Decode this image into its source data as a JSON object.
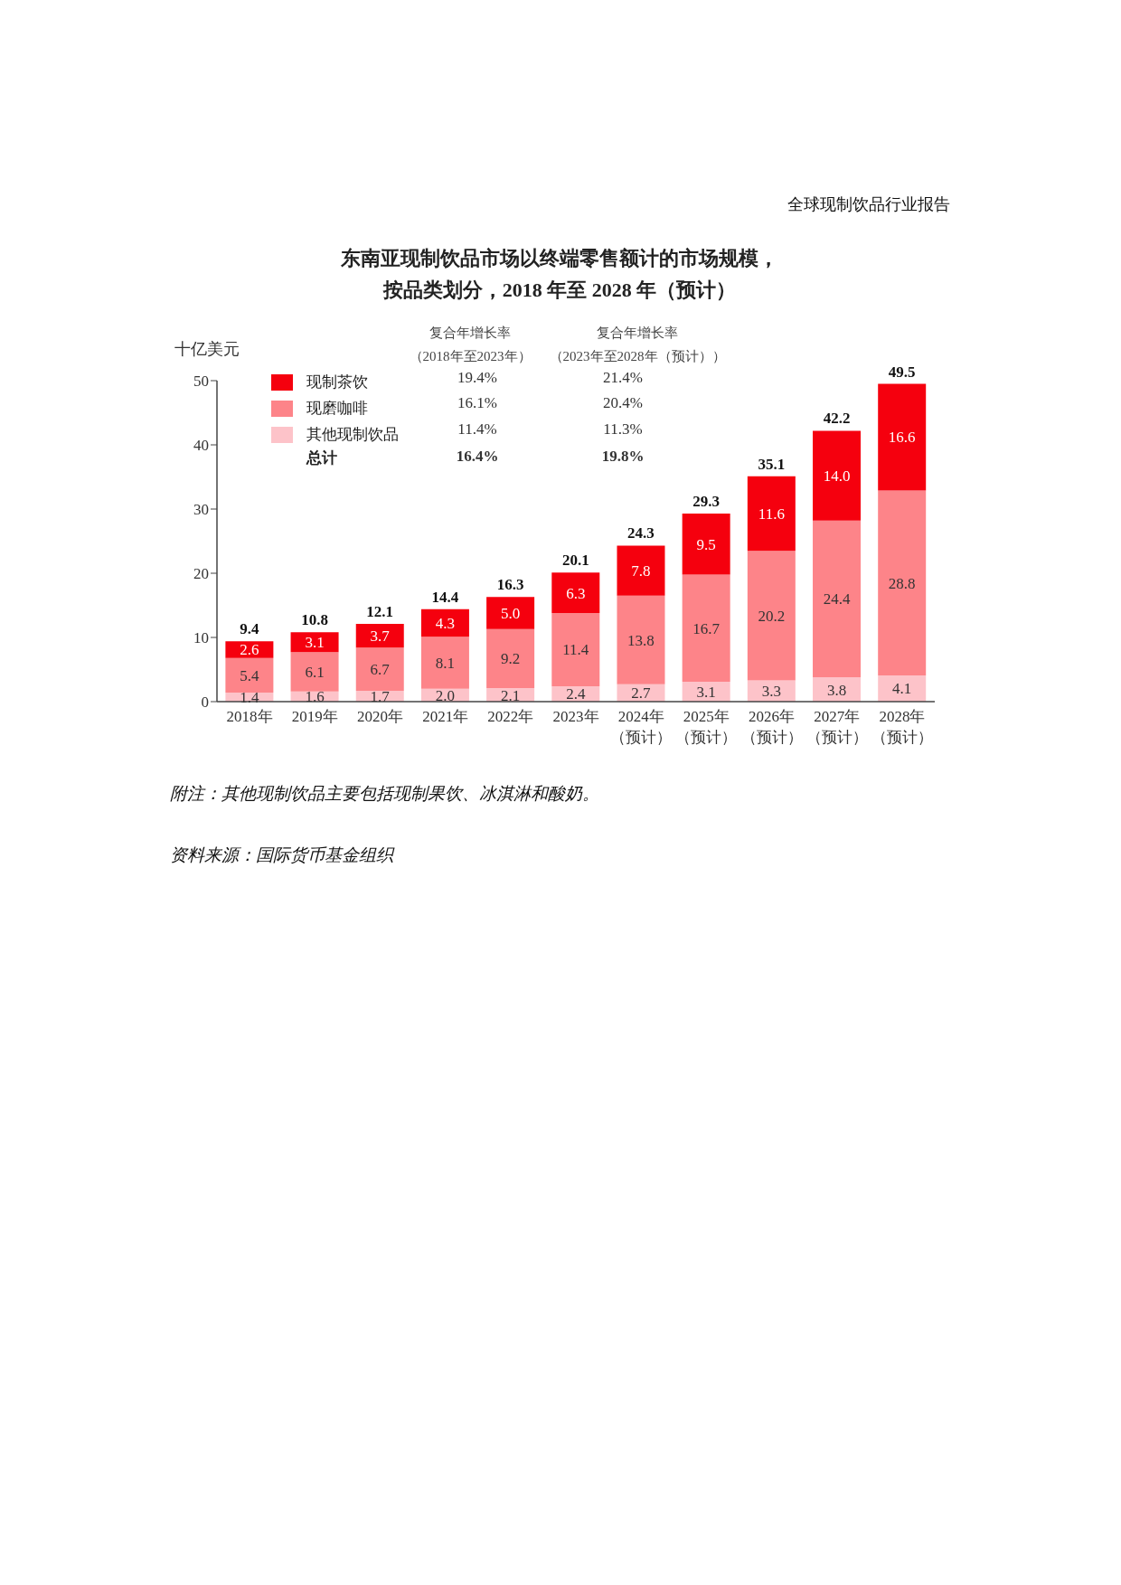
{
  "chart_data": {
    "type": "bar",
    "stacked": true,
    "title": "东南亚现制饮品市场以终端零售额计的市场规模，按品类划分，2018 年至 2028 年（预计）",
    "ylabel": "十亿美元",
    "categories": [
      "2018年",
      "2019年",
      "2020年",
      "2021年",
      "2022年",
      "2023年",
      "2024年（预计）",
      "2025年（预计）",
      "2026年（预计）",
      "2027年（预计）",
      "2028年（预计）"
    ],
    "series": [
      {
        "name": "其他现制饮品",
        "color": "#fdc3c9",
        "values": [
          1.4,
          1.6,
          1.7,
          2.0,
          2.1,
          2.4,
          2.7,
          3.1,
          3.3,
          3.8,
          4.1
        ],
        "value_labels": [
          "1.4",
          "1.6",
          "1.7",
          "2.0",
          "2.1",
          "2.4",
          "2.7",
          "3.1",
          "3.3",
          "3.8",
          "4.1"
        ]
      },
      {
        "name": "现磨咖啡",
        "color": "#fd8489",
        "values": [
          5.4,
          6.1,
          6.7,
          8.1,
          9.2,
          11.4,
          13.8,
          16.7,
          20.2,
          24.4,
          28.8
        ],
        "value_labels": [
          "5.4",
          "6.1",
          "6.7",
          "8.1",
          "9.2",
          "11.4",
          "13.8",
          "16.7",
          "20.2",
          "24.4",
          "28.8"
        ]
      },
      {
        "name": "现制茶饮",
        "color": "#f5000e",
        "values": [
          2.6,
          3.1,
          3.7,
          4.3,
          5.0,
          6.3,
          7.8,
          9.5,
          11.6,
          14.0,
          16.6
        ],
        "value_labels": [
          "2.6",
          "3.1",
          "3.7",
          "4.3",
          "5.0",
          "6.3",
          "7.8",
          "9.5",
          "11.6",
          "14.0",
          "16.6"
        ]
      }
    ],
    "totals": [
      "9.4",
      "10.8",
      "12.1",
      "14.4",
      "16.3",
      "20.1",
      "24.3",
      "29.3",
      "35.1",
      "42.2",
      "49.5"
    ],
    "ylim": [
      0,
      50
    ],
    "yticks": [
      0,
      10,
      20,
      30,
      40,
      50
    ],
    "legend": "top left",
    "annotations": [
      "全球现制饮品行业报告",
      "复合年增长率（2018年至2023年）",
      "复合年增长率（2023年至2028年（预计））",
      "总计",
      "19.4%",
      "21.4%",
      "16.1%",
      "20.4%",
      "11.4%",
      "11.3%",
      "16.4%",
      "19.8%",
      "附注：其他现制饮品主要包括现制果饮、冰淇淋和酸奶。",
      "资料来源：国际货币基金组织"
    ]
  }
}
